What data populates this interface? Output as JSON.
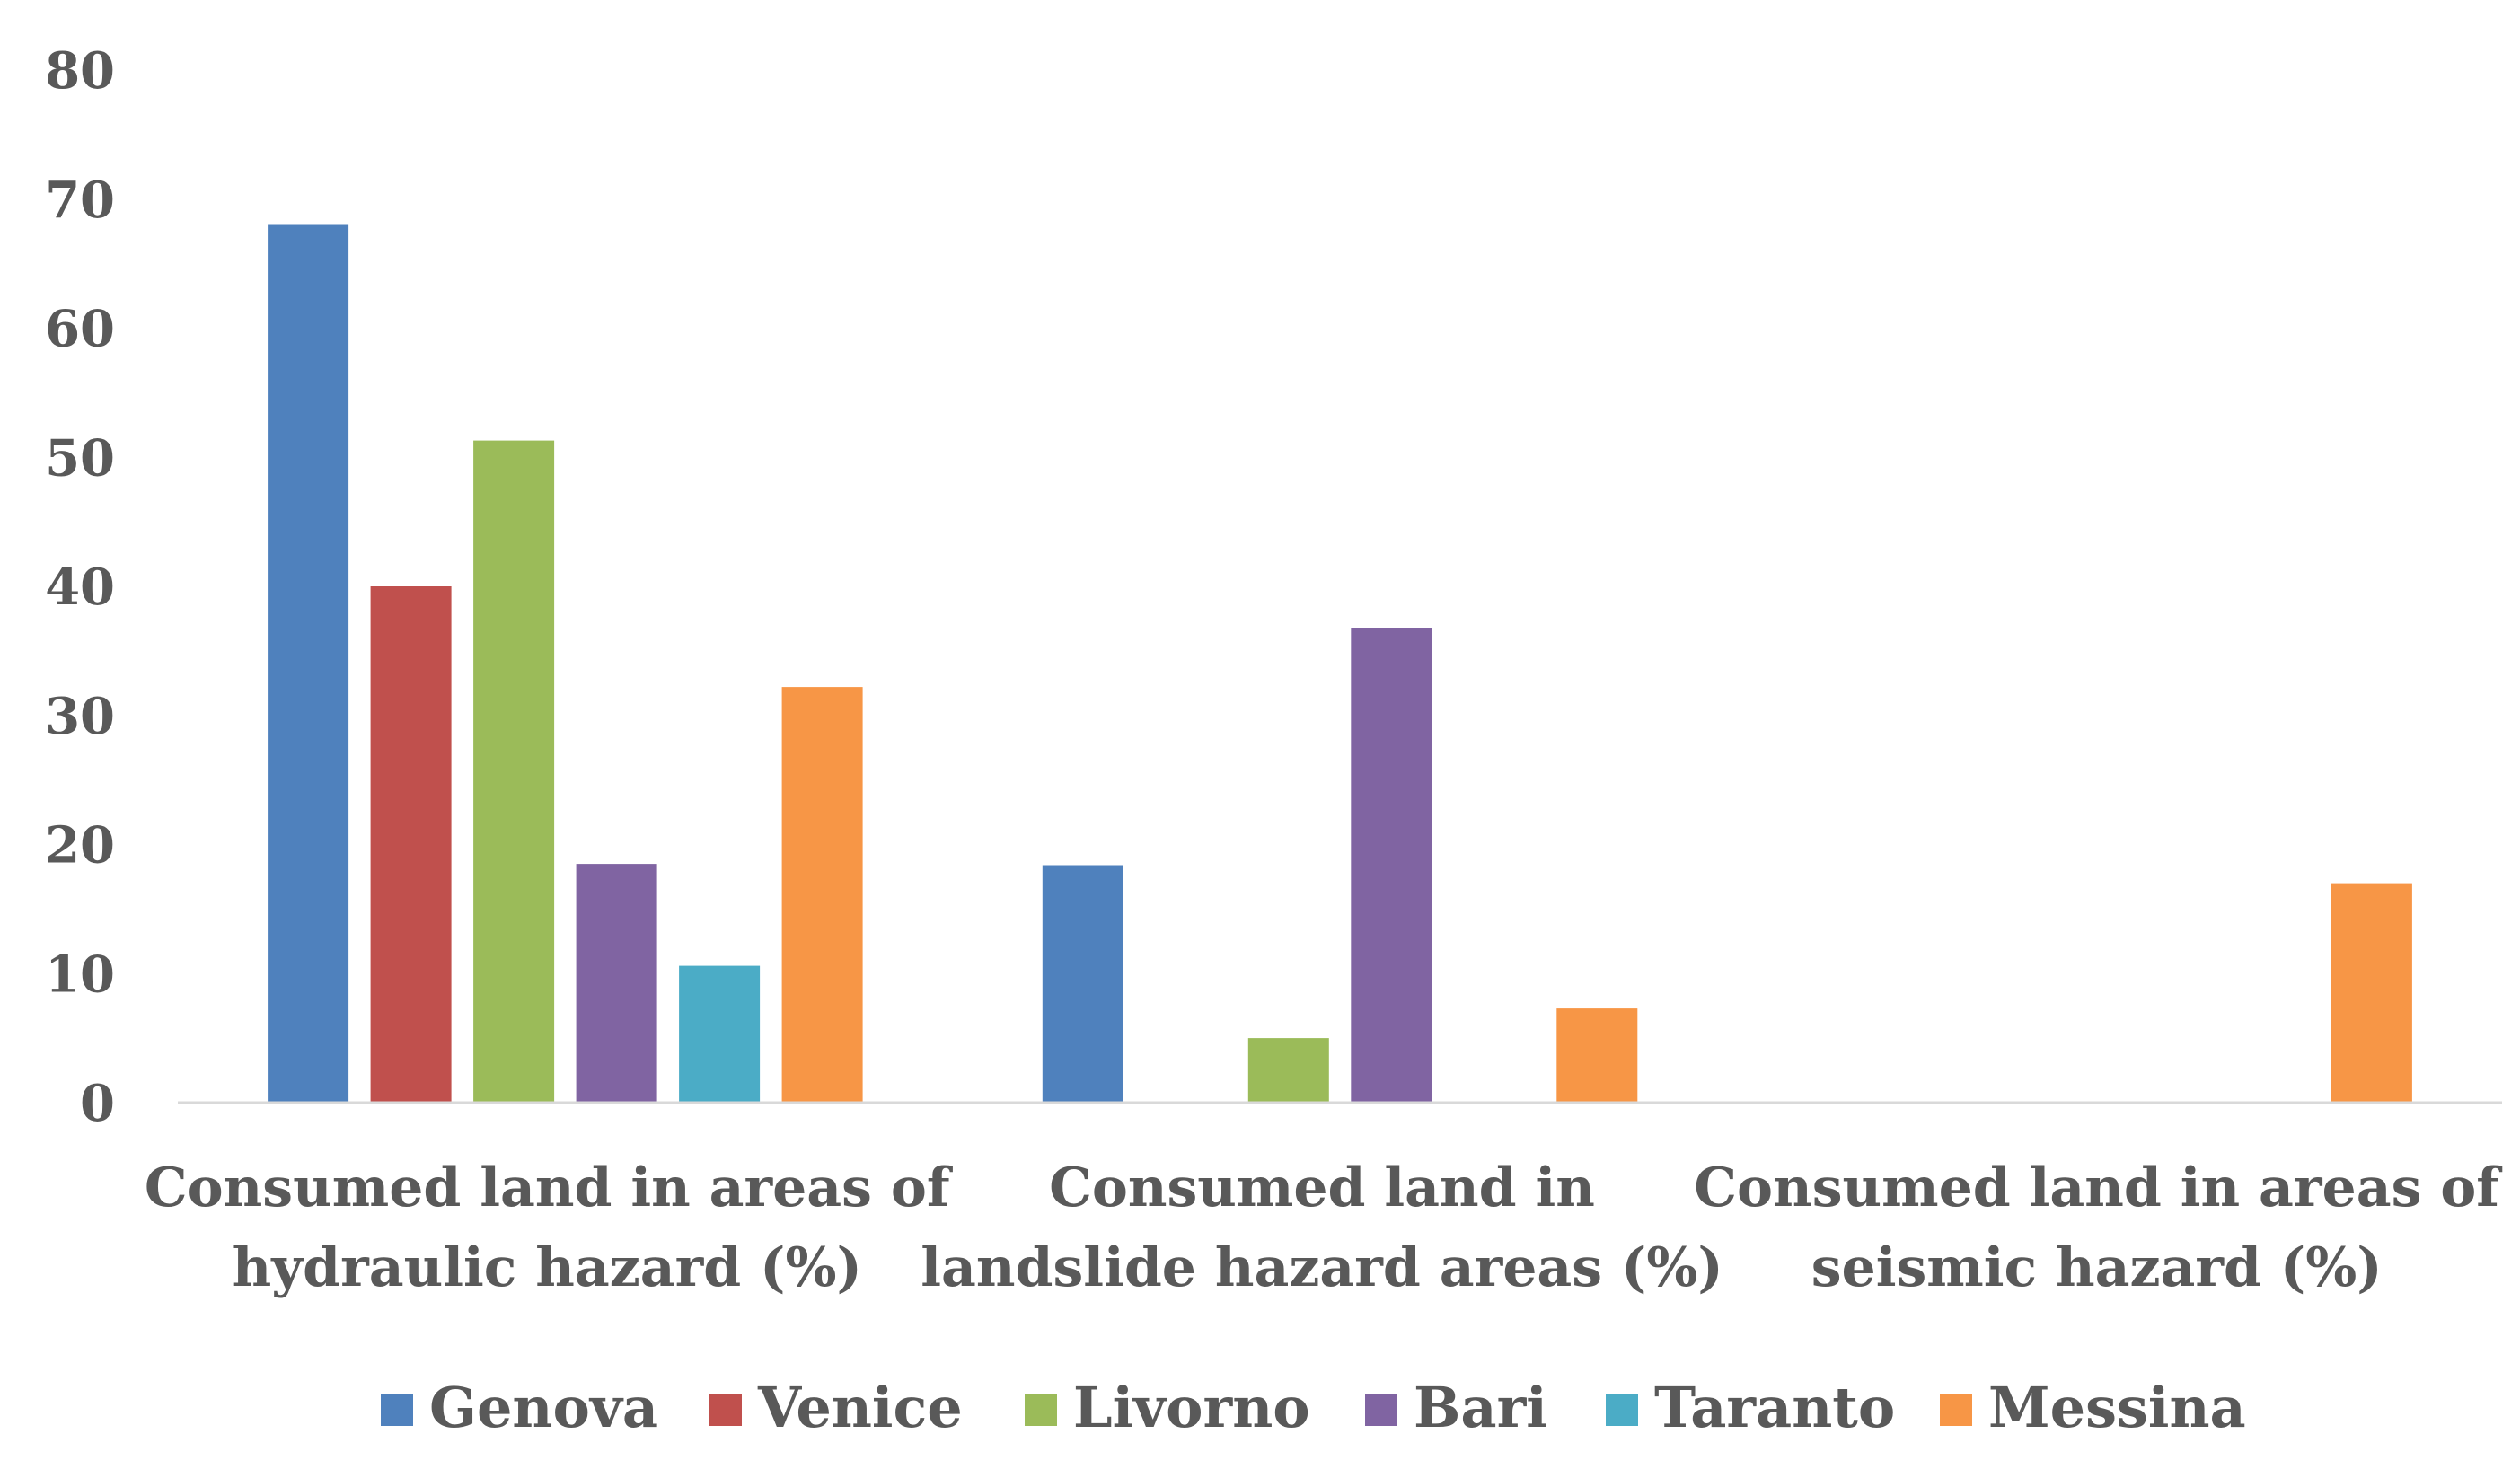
{
  "chart_data": {
    "type": "bar",
    "categories": [
      [
        "Consumed land in areas of",
        "hydraulic hazard (%)"
      ],
      [
        "Consumed land in",
        "landslide hazard areas (%)"
      ],
      [
        "Consumed land in areas of",
        "seismic hazard (%)"
      ]
    ],
    "series": [
      {
        "name": "Genova",
        "color": "#4f81bd",
        "values": [
          68,
          18.4,
          0
        ]
      },
      {
        "name": "Venice",
        "color": "#c0504d",
        "values": [
          40,
          0,
          0
        ]
      },
      {
        "name": "Livorno",
        "color": "#9bbb59",
        "values": [
          51.3,
          5,
          0
        ]
      },
      {
        "name": "Bari",
        "color": "#8064a2",
        "values": [
          18.5,
          36.8,
          0
        ]
      },
      {
        "name": "Taranto",
        "color": "#4bacc6",
        "values": [
          10.6,
          0,
          0
        ]
      },
      {
        "name": "Messina",
        "color": "#f79646",
        "values": [
          32.2,
          7.3,
          17
        ]
      }
    ],
    "yticks": [
      "0",
      "10",
      "20",
      "30",
      "40",
      "50",
      "60",
      "70",
      "80"
    ],
    "ylim": [
      0,
      80
    ],
    "grid": false,
    "legend_position": "bottom"
  }
}
